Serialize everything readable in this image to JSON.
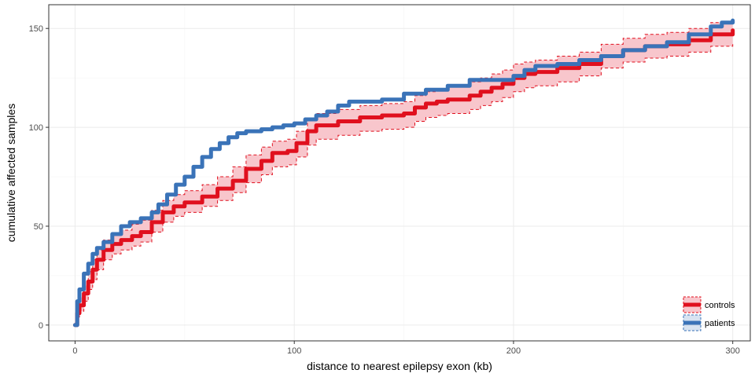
{
  "chart_data": {
    "type": "line",
    "title": "",
    "xlabel": "distance to nearest epilepsy exon (kb)",
    "ylabel": "cumulative affected samples",
    "xlim": [
      -12,
      308
    ],
    "ylim": [
      -8,
      162
    ],
    "x_ticks": [
      0,
      100,
      200,
      300
    ],
    "y_ticks": [
      0,
      50,
      100,
      150
    ],
    "x_tick_labels": [
      "0",
      "100",
      "200",
      "300"
    ],
    "y_tick_labels": [
      "0",
      "50",
      "100",
      "150"
    ],
    "grid": true,
    "step": true,
    "legend": {
      "position": "bottom-right"
    },
    "series": [
      {
        "name": "controls",
        "color": "#e0101e",
        "band_fill": "#f8c6cc",
        "band_stroke": "#e0101e",
        "points": [
          [
            0,
            0
          ],
          [
            1,
            6
          ],
          [
            2,
            10
          ],
          [
            4,
            16
          ],
          [
            6,
            22
          ],
          [
            8,
            28
          ],
          [
            10,
            33
          ],
          [
            13,
            38
          ],
          [
            17,
            41
          ],
          [
            21,
            43
          ],
          [
            26,
            45
          ],
          [
            30,
            47
          ],
          [
            35,
            52
          ],
          [
            40,
            57
          ],
          [
            45,
            60
          ],
          [
            50,
            62
          ],
          [
            58,
            65
          ],
          [
            65,
            69
          ],
          [
            72,
            73
          ],
          [
            78,
            79
          ],
          [
            85,
            83
          ],
          [
            90,
            87
          ],
          [
            97,
            88
          ],
          [
            101,
            92
          ],
          [
            106,
            98
          ],
          [
            110,
            101
          ],
          [
            120,
            103
          ],
          [
            130,
            105
          ],
          [
            140,
            106
          ],
          [
            150,
            107
          ],
          [
            155,
            110
          ],
          [
            160,
            112
          ],
          [
            165,
            113
          ],
          [
            170,
            114
          ],
          [
            180,
            116
          ],
          [
            185,
            118
          ],
          [
            190,
            120
          ],
          [
            195,
            122
          ],
          [
            200,
            125
          ],
          [
            205,
            127
          ],
          [
            210,
            128
          ],
          [
            220,
            130
          ],
          [
            230,
            132
          ],
          [
            240,
            136
          ],
          [
            250,
            139
          ],
          [
            260,
            141
          ],
          [
            270,
            142
          ],
          [
            280,
            144
          ],
          [
            290,
            147
          ],
          [
            300,
            149
          ]
        ],
        "lower": [
          [
            0,
            0
          ],
          [
            1,
            4
          ],
          [
            2,
            7
          ],
          [
            4,
            12
          ],
          [
            6,
            18
          ],
          [
            8,
            23
          ],
          [
            10,
            28
          ],
          [
            13,
            33
          ],
          [
            17,
            36
          ],
          [
            21,
            38
          ],
          [
            26,
            40
          ],
          [
            30,
            42
          ],
          [
            35,
            47
          ],
          [
            40,
            52
          ],
          [
            45,
            55
          ],
          [
            50,
            57
          ],
          [
            58,
            60
          ],
          [
            65,
            63
          ],
          [
            72,
            67
          ],
          [
            78,
            72
          ],
          [
            85,
            76
          ],
          [
            90,
            80
          ],
          [
            97,
            81
          ],
          [
            101,
            85
          ],
          [
            106,
            91
          ],
          [
            110,
            94
          ],
          [
            120,
            96
          ],
          [
            130,
            98
          ],
          [
            140,
            99
          ],
          [
            150,
            100
          ],
          [
            155,
            103
          ],
          [
            160,
            105
          ],
          [
            165,
            106
          ],
          [
            170,
            107
          ],
          [
            180,
            109
          ],
          [
            185,
            111
          ],
          [
            190,
            113
          ],
          [
            195,
            115
          ],
          [
            200,
            118
          ],
          [
            205,
            120
          ],
          [
            210,
            121
          ],
          [
            220,
            123
          ],
          [
            230,
            126
          ],
          [
            240,
            130
          ],
          [
            250,
            133
          ],
          [
            260,
            135
          ],
          [
            270,
            136
          ],
          [
            280,
            138
          ],
          [
            290,
            141
          ],
          [
            300,
            143
          ]
        ],
        "upper": [
          [
            0,
            1
          ],
          [
            1,
            9
          ],
          [
            2,
            14
          ],
          [
            4,
            20
          ],
          [
            6,
            27
          ],
          [
            8,
            33
          ],
          [
            10,
            38
          ],
          [
            13,
            43
          ],
          [
            17,
            46
          ],
          [
            21,
            48
          ],
          [
            26,
            51
          ],
          [
            30,
            53
          ],
          [
            35,
            58
          ],
          [
            40,
            63
          ],
          [
            45,
            66
          ],
          [
            50,
            68
          ],
          [
            58,
            71
          ],
          [
            65,
            75
          ],
          [
            72,
            80
          ],
          [
            78,
            86
          ],
          [
            85,
            90
          ],
          [
            90,
            93
          ],
          [
            97,
            94
          ],
          [
            101,
            98
          ],
          [
            106,
            104
          ],
          [
            110,
            107
          ],
          [
            120,
            109
          ],
          [
            130,
            111
          ],
          [
            140,
            112
          ],
          [
            150,
            113
          ],
          [
            155,
            116
          ],
          [
            160,
            118
          ],
          [
            165,
            119
          ],
          [
            170,
            121
          ],
          [
            180,
            123
          ],
          [
            185,
            125
          ],
          [
            190,
            127
          ],
          [
            195,
            129
          ],
          [
            200,
            132
          ],
          [
            205,
            133
          ],
          [
            210,
            134
          ],
          [
            220,
            136
          ],
          [
            230,
            138
          ],
          [
            240,
            142
          ],
          [
            250,
            145
          ],
          [
            260,
            147
          ],
          [
            270,
            148
          ],
          [
            280,
            150
          ],
          [
            290,
            153
          ],
          [
            300,
            155
          ]
        ]
      },
      {
        "name": "patients",
        "color": "#3a73b8",
        "points": [
          [
            0,
            0
          ],
          [
            1,
            12
          ],
          [
            2,
            18
          ],
          [
            4,
            26
          ],
          [
            6,
            31
          ],
          [
            8,
            36
          ],
          [
            10,
            39
          ],
          [
            13,
            42
          ],
          [
            17,
            46
          ],
          [
            21,
            50
          ],
          [
            25,
            52
          ],
          [
            30,
            54
          ],
          [
            35,
            57
          ],
          [
            38,
            61
          ],
          [
            42,
            66
          ],
          [
            46,
            71
          ],
          [
            50,
            75
          ],
          [
            54,
            80
          ],
          [
            58,
            85
          ],
          [
            62,
            89
          ],
          [
            66,
            92
          ],
          [
            70,
            95
          ],
          [
            74,
            97
          ],
          [
            78,
            98
          ],
          [
            85,
            99
          ],
          [
            90,
            100
          ],
          [
            95,
            101
          ],
          [
            100,
            102
          ],
          [
            105,
            104
          ],
          [
            110,
            106
          ],
          [
            115,
            108
          ],
          [
            120,
            111
          ],
          [
            125,
            113
          ],
          [
            130,
            113
          ],
          [
            140,
            114
          ],
          [
            150,
            117
          ],
          [
            160,
            119
          ],
          [
            170,
            121
          ],
          [
            180,
            124
          ],
          [
            190,
            124
          ],
          [
            200,
            126
          ],
          [
            205,
            129
          ],
          [
            210,
            131
          ],
          [
            220,
            132
          ],
          [
            230,
            134
          ],
          [
            240,
            136
          ],
          [
            250,
            139
          ],
          [
            260,
            141
          ],
          [
            270,
            143
          ],
          [
            280,
            147
          ],
          [
            290,
            151
          ],
          [
            295,
            153
          ],
          [
            300,
            154
          ]
        ]
      }
    ]
  }
}
